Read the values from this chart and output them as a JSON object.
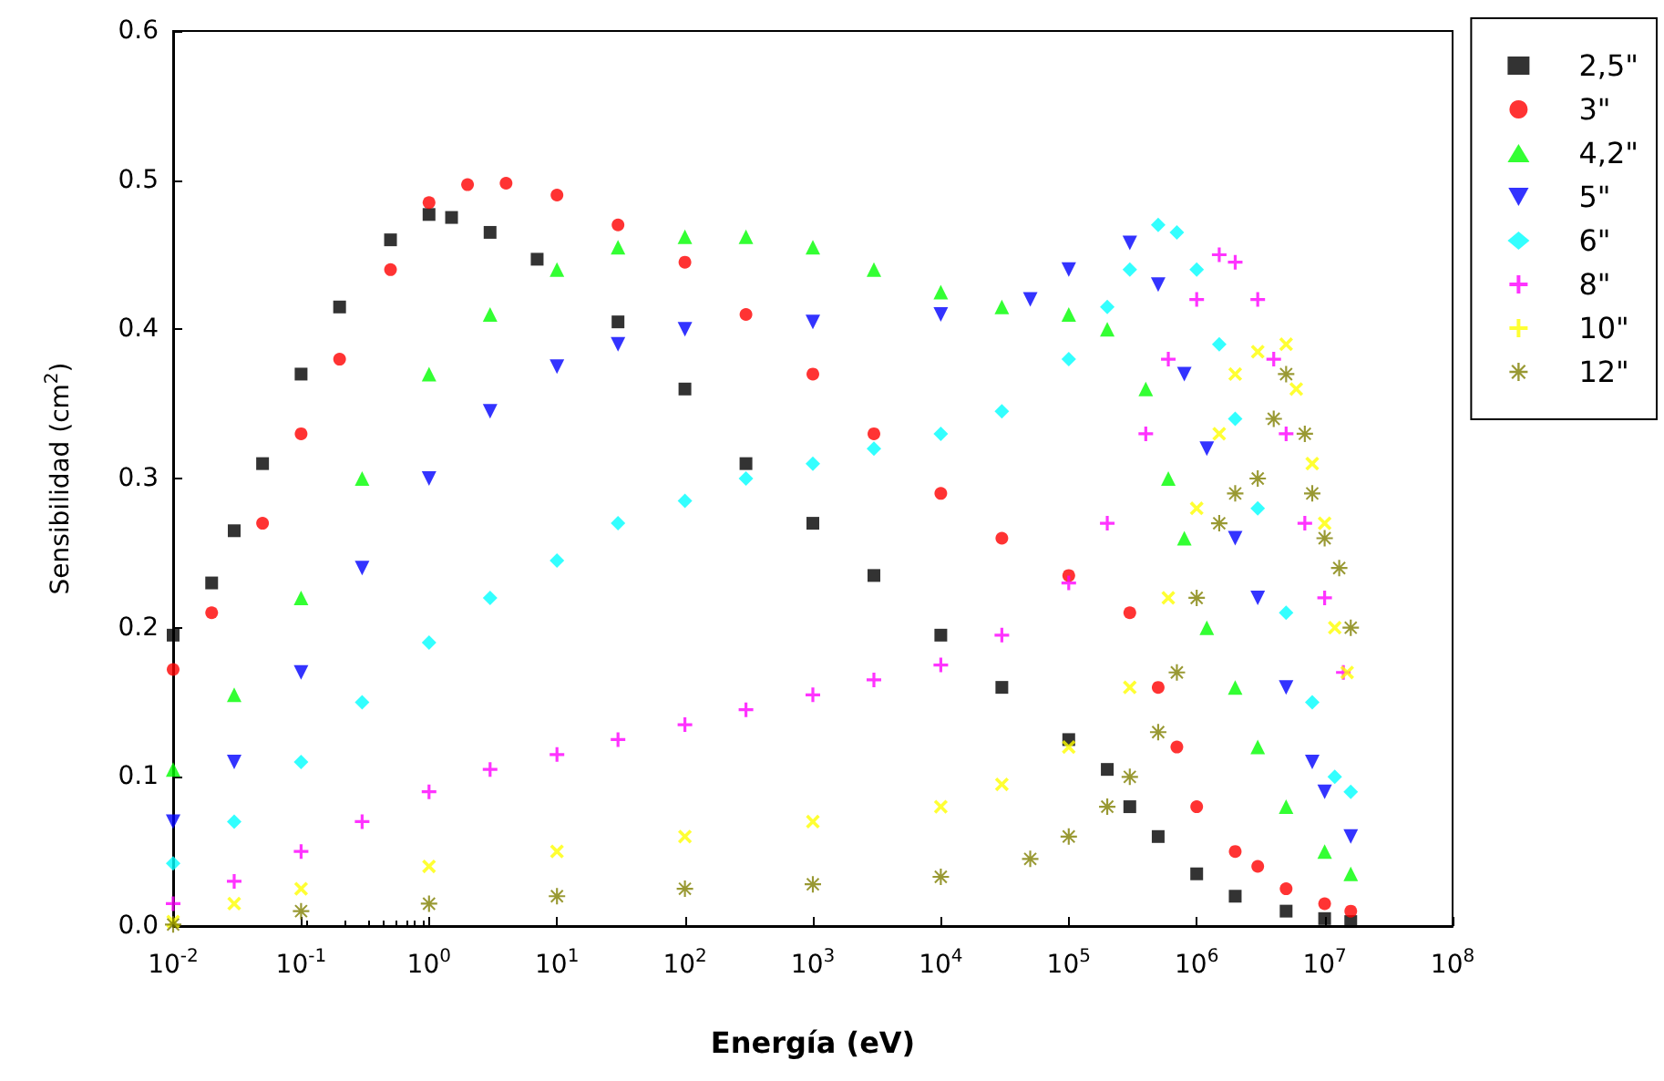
{
  "chart_data": {
    "type": "scatter",
    "xlabel": "Energía (eV)",
    "ylabel": "Sensibilidad (cm$^{2}$)",
    "log": "x",
    "grid": false,
    "legend": "right",
    "xlim": [
      0.01,
      100000000
    ],
    "xticks": [
      {
        "value": 0.01,
        "label": "10$^{-2}$"
      },
      {
        "value": 0.1,
        "label": "10$^{-1}$"
      },
      {
        "value": 1,
        "label": "10$^{0}$"
      },
      {
        "value": 10,
        "label": "10$^{1}$"
      },
      {
        "value": 100,
        "label": "10$^{2}$"
      },
      {
        "value": 1000,
        "label": "10$^{3}$"
      },
      {
        "value": 10000,
        "label": "10$^{4}$"
      },
      {
        "value": 100000,
        "label": "10$^{5}$"
      },
      {
        "value": 1000000,
        "label": "10$^{6}$"
      },
      {
        "value": 10000000,
        "label": "10$^{7}$"
      },
      {
        "value": 100000000,
        "label": "10$^{8}$"
      }
    ],
    "ylim": [
      0,
      0.6
    ],
    "yticks": [
      {
        "value": 0,
        "label": "0.0"
      },
      {
        "value": 0.1,
        "label": "0.1"
      },
      {
        "value": 0.2,
        "label": "0.2"
      },
      {
        "value": 0.3,
        "label": "0.3"
      },
      {
        "value": 0.4,
        "label": "0.4"
      },
      {
        "value": 0.5,
        "label": "0.5"
      },
      {
        "value": 0.6,
        "label": "0.6"
      }
    ],
    "series": [
      {
        "name": "2,5\"",
        "color": "#000000",
        "marker": "square",
        "x": [
          0.01,
          0.02,
          0.03,
          0.05,
          0.1,
          0.2,
          0.5,
          1,
          1.5,
          3,
          7,
          30,
          100,
          300,
          1000,
          3000,
          10000,
          30000,
          100000,
          200000,
          300000,
          500000,
          1000000,
          2000000,
          5000000,
          10000000,
          16000000
        ],
        "values": [
          0.195,
          0.23,
          0.265,
          0.31,
          0.37,
          0.415,
          0.46,
          0.477,
          0.475,
          0.465,
          0.447,
          0.405,
          0.36,
          0.31,
          0.27,
          0.235,
          0.195,
          0.16,
          0.125,
          0.105,
          0.08,
          0.06,
          0.035,
          0.02,
          0.01,
          0.005,
          0.003
        ]
      },
      {
        "name": "3\"",
        "color": "#ff0000",
        "marker": "circle",
        "x": [
          0.01,
          0.02,
          0.05,
          0.1,
          0.2,
          0.5,
          1,
          2,
          4,
          10,
          30,
          100,
          300,
          1000,
          3000,
          10000,
          30000,
          100000,
          300000,
          500000,
          700000,
          1000000,
          2000000,
          3000000,
          5000000,
          10000000,
          16000000
        ],
        "values": [
          0.172,
          0.21,
          0.27,
          0.33,
          0.38,
          0.44,
          0.485,
          0.497,
          0.498,
          0.49,
          0.47,
          0.445,
          0.41,
          0.37,
          0.33,
          0.29,
          0.26,
          0.235,
          0.21,
          0.16,
          0.12,
          0.08,
          0.05,
          0.04,
          0.025,
          0.015,
          0.01
        ]
      },
      {
        "name": "4,2\"",
        "color": "#00ff00",
        "marker": "triangle",
        "x": [
          0.01,
          0.03,
          0.1,
          0.3,
          1,
          3,
          10,
          30,
          100,
          300,
          1000,
          3000,
          10000,
          30000,
          100000,
          200000,
          400000,
          600000,
          800000,
          1200000,
          2000000,
          3000000,
          5000000,
          10000000,
          16000000
        ],
        "values": [
          0.105,
          0.155,
          0.22,
          0.3,
          0.37,
          0.41,
          0.44,
          0.455,
          0.462,
          0.462,
          0.455,
          0.44,
          0.425,
          0.415,
          0.41,
          0.4,
          0.36,
          0.3,
          0.26,
          0.2,
          0.16,
          0.12,
          0.08,
          0.05,
          0.035
        ]
      },
      {
        "name": "5\"",
        "color": "#0000ff",
        "marker": "triangle_down",
        "x": [
          0.01,
          0.03,
          0.1,
          0.3,
          1,
          3,
          10,
          30,
          100,
          1000,
          10000,
          50000,
          100000,
          300000,
          500000,
          800000,
          1200000,
          2000000,
          3000000,
          5000000,
          8000000,
          10000000,
          16000000
        ],
        "values": [
          0.07,
          0.11,
          0.17,
          0.24,
          0.3,
          0.345,
          0.375,
          0.39,
          0.4,
          0.405,
          0.41,
          0.42,
          0.44,
          0.458,
          0.43,
          0.37,
          0.32,
          0.26,
          0.22,
          0.16,
          0.11,
          0.09,
          0.06
        ]
      },
      {
        "name": "6\"",
        "color": "#00ffff",
        "marker": "diamond",
        "x": [
          0.01,
          0.03,
          0.1,
          0.3,
          1,
          3,
          10,
          30,
          100,
          300,
          1000,
          3000,
          10000,
          30000,
          100000,
          200000,
          300000,
          500000,
          700000,
          1000000,
          1500000,
          2000000,
          3000000,
          5000000,
          8000000,
          12000000,
          16000000
        ],
        "values": [
          0.042,
          0.07,
          0.11,
          0.15,
          0.19,
          0.22,
          0.245,
          0.27,
          0.285,
          0.3,
          0.31,
          0.32,
          0.33,
          0.345,
          0.38,
          0.415,
          0.44,
          0.47,
          0.465,
          0.44,
          0.39,
          0.34,
          0.28,
          0.21,
          0.15,
          0.1,
          0.09
        ]
      },
      {
        "name": "8\"",
        "color": "#ff00ff",
        "marker": "cross",
        "x": [
          0.01,
          0.03,
          0.1,
          0.3,
          1,
          3,
          10,
          30,
          100,
          300,
          1000,
          3000,
          10000,
          30000,
          100000,
          200000,
          400000,
          600000,
          1000000,
          1500000,
          2000000,
          3000000,
          4000000,
          5000000,
          7000000,
          10000000,
          14000000
        ],
        "values": [
          0.015,
          0.03,
          0.05,
          0.07,
          0.09,
          0.105,
          0.115,
          0.125,
          0.135,
          0.145,
          0.155,
          0.165,
          0.175,
          0.195,
          0.23,
          0.27,
          0.33,
          0.38,
          0.42,
          0.45,
          0.445,
          0.42,
          0.38,
          0.33,
          0.27,
          0.22,
          0.17
        ]
      },
      {
        "name": "10\"",
        "color": "#ffff00",
        "marker": "x",
        "x": [
          0.01,
          0.03,
          0.1,
          1,
          10,
          100,
          1000,
          10000,
          30000,
          100000,
          300000,
          600000,
          1000000,
          1500000,
          2000000,
          3000000,
          5000000,
          6000000,
          8000000,
          10000000,
          12000000,
          15000000
        ],
        "values": [
          0.003,
          0.015,
          0.025,
          0.04,
          0.05,
          0.06,
          0.07,
          0.08,
          0.095,
          0.12,
          0.16,
          0.22,
          0.28,
          0.33,
          0.37,
          0.385,
          0.39,
          0.36,
          0.31,
          0.27,
          0.2,
          0.17
        ]
      },
      {
        "name": "12\"",
        "color": "#808000",
        "marker": "asterisk",
        "x": [
          0.01,
          0.1,
          1,
          10,
          100,
          1000,
          10000,
          50000,
          100000,
          200000,
          300000,
          500000,
          700000,
          1000000,
          1500000,
          2000000,
          3000000,
          4000000,
          5000000,
          7000000,
          8000000,
          10000000,
          13000000,
          16000000
        ],
        "values": [
          0.001,
          0.01,
          0.015,
          0.02,
          0.025,
          0.028,
          0.033,
          0.045,
          0.06,
          0.08,
          0.1,
          0.13,
          0.17,
          0.22,
          0.27,
          0.29,
          0.3,
          0.34,
          0.37,
          0.33,
          0.29,
          0.26,
          0.24,
          0.2
        ]
      }
    ]
  }
}
